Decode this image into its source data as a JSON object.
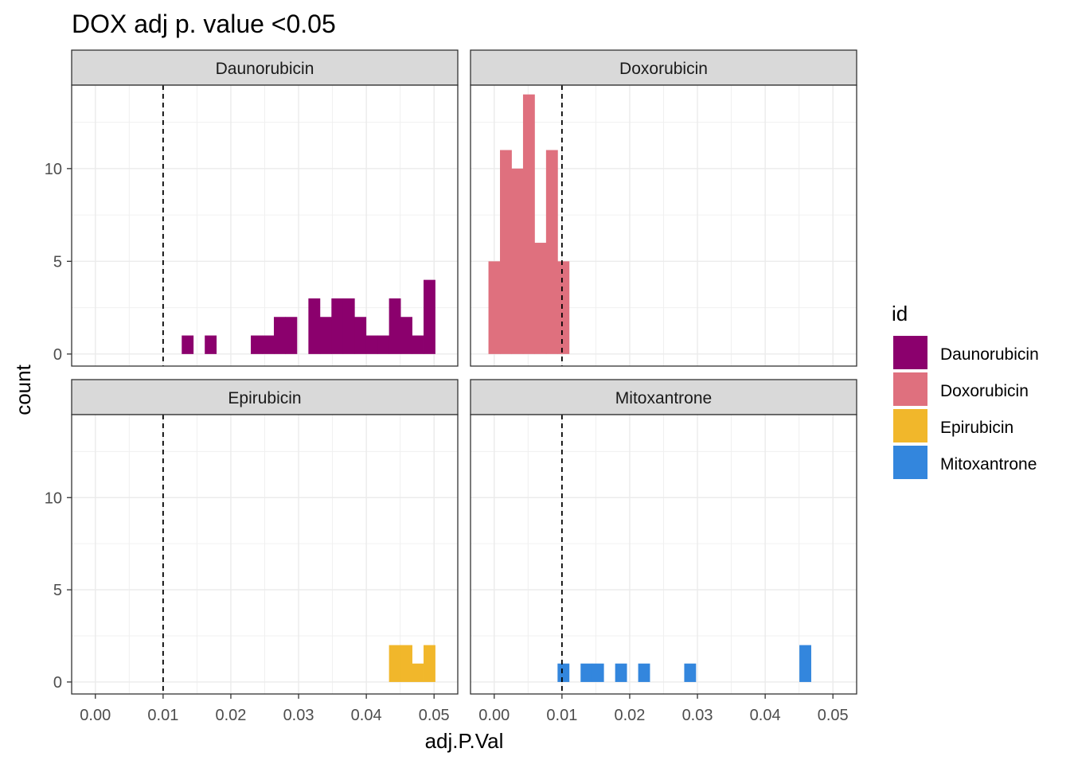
{
  "chart_data": {
    "type": "bar",
    "title": "DOX adj p. value <0.05",
    "xlabel": "adj.P.Val",
    "ylabel": "count",
    "xlim": [
      -0.0035,
      0.0535
    ],
    "ylim": [
      -0.65,
      14.5
    ],
    "x_ticks": [
      "0.00",
      "0.01",
      "0.02",
      "0.03",
      "0.04",
      "0.05"
    ],
    "x_tick_values": [
      0,
      0.01,
      0.02,
      0.03,
      0.04,
      0.05
    ],
    "y_ticks": [
      "0",
      "5",
      "10"
    ],
    "y_tick_values": [
      0,
      5,
      10
    ],
    "bin_width": 0.0017,
    "reference_line_x": 0.01,
    "grid": true,
    "legend": {
      "title": "id",
      "placement": "right",
      "entries": [
        {
          "label": "Daunorubicin",
          "color": "#8B006D"
        },
        {
          "label": "Doxorubicin",
          "color": "#DF707E"
        },
        {
          "label": "Epirubicin",
          "color": "#F1B72B"
        },
        {
          "label": "Mitoxantrone",
          "color": "#3386DD"
        }
      ]
    },
    "panels": [
      {
        "name": "Daunorubicin",
        "color": "#8B006D",
        "bins": [
          {
            "x": 0.0136,
            "count": 1
          },
          {
            "x": 0.017,
            "count": 1
          },
          {
            "x": 0.0238,
            "count": 1
          },
          {
            "x": 0.0255,
            "count": 1
          },
          {
            "x": 0.0272,
            "count": 2
          },
          {
            "x": 0.0289,
            "count": 2
          },
          {
            "x": 0.0323,
            "count": 3
          },
          {
            "x": 0.034,
            "count": 2
          },
          {
            "x": 0.0357,
            "count": 3
          },
          {
            "x": 0.0374,
            "count": 3
          },
          {
            "x": 0.0391,
            "count": 2
          },
          {
            "x": 0.0408,
            "count": 1
          },
          {
            "x": 0.0425,
            "count": 1
          },
          {
            "x": 0.0442,
            "count": 3
          },
          {
            "x": 0.0459,
            "count": 2
          },
          {
            "x": 0.0476,
            "count": 1
          },
          {
            "x": 0.0493,
            "count": 4
          }
        ]
      },
      {
        "name": "Doxorubicin",
        "color": "#DF707E",
        "bins": [
          {
            "x": 0.0,
            "count": 5
          },
          {
            "x": 0.0017,
            "count": 11
          },
          {
            "x": 0.0034,
            "count": 10
          },
          {
            "x": 0.0051,
            "count": 14
          },
          {
            "x": 0.0068,
            "count": 6
          },
          {
            "x": 0.0085,
            "count": 11
          },
          {
            "x": 0.0102,
            "count": 5
          }
        ]
      },
      {
        "name": "Epirubicin",
        "color": "#F1B72B",
        "bins": [
          {
            "x": 0.0442,
            "count": 2
          },
          {
            "x": 0.0459,
            "count": 2
          },
          {
            "x": 0.0476,
            "count": 1
          },
          {
            "x": 0.0493,
            "count": 2
          }
        ]
      },
      {
        "name": "Mitoxantrone",
        "color": "#3386DD",
        "bins": [
          {
            "x": 0.0102,
            "count": 1
          },
          {
            "x": 0.0136,
            "count": 1
          },
          {
            "x": 0.0153,
            "count": 1
          },
          {
            "x": 0.0187,
            "count": 1
          },
          {
            "x": 0.0221,
            "count": 1
          },
          {
            "x": 0.0289,
            "count": 1
          },
          {
            "x": 0.0459,
            "count": 2
          }
        ]
      }
    ]
  }
}
